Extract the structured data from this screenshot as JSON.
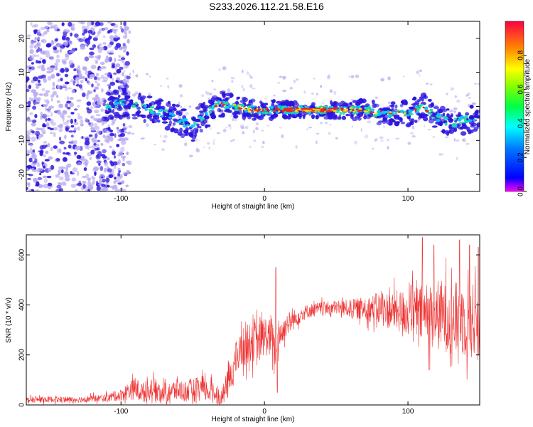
{
  "title": "S233.2026.112.21.58.E16",
  "colors": {
    "snr_line": "#ee3333",
    "spectrogram_core": "#ee2222",
    "spectrogram_mid": "#22dd99",
    "spectrogram_edge": "#2a14dd",
    "spectrogram_haze": "#b7a6f0"
  },
  "chart_data": [
    {
      "type": "heatmap",
      "title": "S233.2026.112.21.58.E16",
      "xlabel": "Height of straight line (km)",
      "ylabel": "Frequency (Hz)",
      "xlim": [
        -166,
        150
      ],
      "ylim": [
        -25,
        25
      ],
      "x_ticks": [
        "-100",
        "0",
        "100"
      ],
      "y_ticks": [
        "-20",
        "-10",
        "0",
        "10",
        "20"
      ],
      "colorbar": {
        "label": "Normalized spectral amplitude",
        "range": [
          0,
          1
        ],
        "ticks": [
          "0.0",
          "0.2",
          "0.4",
          "0.6",
          "0.8"
        ],
        "colormap": "rainbow"
      },
      "signal_ridge": {
        "x": [
          -110,
          -100,
          -90,
          -80,
          -70,
          -60,
          -50,
          -40,
          -30,
          -20,
          -10,
          0,
          10,
          20,
          30,
          40,
          50,
          60,
          70,
          80,
          90,
          100,
          110,
          120,
          130,
          140,
          150
        ],
        "center_hz": [
          0,
          1,
          0,
          -1,
          -2,
          -4,
          -6,
          -2,
          1,
          0,
          -1,
          -1,
          -1,
          -1,
          -1,
          -1,
          -1,
          -1,
          -1,
          -2,
          -2,
          -2,
          0,
          -3,
          -5,
          -4,
          -4
        ],
        "peak_amplitude": [
          0.3,
          0.4,
          0.45,
          0.45,
          0.4,
          0.35,
          0.35,
          0.4,
          0.5,
          0.7,
          0.75,
          0.8,
          0.85,
          0.95,
          1.0,
          1.0,
          0.85,
          0.8,
          0.75,
          0.7,
          0.6,
          0.5,
          0.55,
          0.5,
          0.45,
          0.45,
          0.4
        ]
      },
      "noise_region_x": [
        -166,
        -100
      ]
    },
    {
      "type": "line",
      "xlabel": "Height of straight line (km)",
      "ylabel": "SNR (10 * v/v)",
      "xlim": [
        -166,
        150
      ],
      "ylim": [
        0,
        680
      ],
      "x_ticks": [
        "-100",
        "0",
        "100"
      ],
      "y_ticks": [
        "0",
        "200",
        "400",
        "600"
      ],
      "x": [
        -166,
        -150,
        -140,
        -130,
        -120,
        -110,
        -100,
        -95,
        -90,
        -85,
        -80,
        -75,
        -70,
        -65,
        -60,
        -55,
        -50,
        -45,
        -40,
        -35,
        -30,
        -25,
        -20,
        -15,
        -10,
        -8,
        -5,
        0,
        5,
        8,
        10,
        12,
        15,
        20,
        25,
        30,
        40,
        50,
        60,
        70,
        80,
        90,
        100,
        110,
        120,
        130,
        140,
        150
      ],
      "values": [
        20,
        22,
        20,
        22,
        25,
        28,
        40,
        55,
        65,
        50,
        55,
        60,
        50,
        55,
        60,
        55,
        60,
        65,
        55,
        50,
        30,
        90,
        180,
        230,
        250,
        270,
        240,
        280,
        260,
        200,
        300,
        280,
        320,
        340,
        360,
        375,
        385,
        390,
        385,
        385,
        385,
        375,
        370,
        360,
        360,
        350,
        340,
        330
      ],
      "noise_amplitude": [
        15,
        15,
        15,
        15,
        18,
        20,
        30,
        45,
        55,
        50,
        55,
        55,
        50,
        55,
        55,
        55,
        60,
        60,
        55,
        50,
        40,
        80,
        90,
        100,
        100,
        120,
        110,
        100,
        100,
        80,
        80,
        70,
        60,
        50,
        40,
        35,
        35,
        35,
        45,
        60,
        80,
        100,
        120,
        150,
        180,
        180,
        190,
        200
      ],
      "spikes": [
        {
          "x": 8,
          "value": 550
        },
        {
          "x": 9,
          "value": 50
        },
        {
          "x": 102,
          "value": 480
        },
        {
          "x": 110,
          "value": 670
        },
        {
          "x": 118,
          "value": 640
        },
        {
          "x": 136,
          "value": 660
        },
        {
          "x": 143,
          "value": 640
        },
        {
          "x": 149,
          "value": 630
        }
      ]
    }
  ]
}
